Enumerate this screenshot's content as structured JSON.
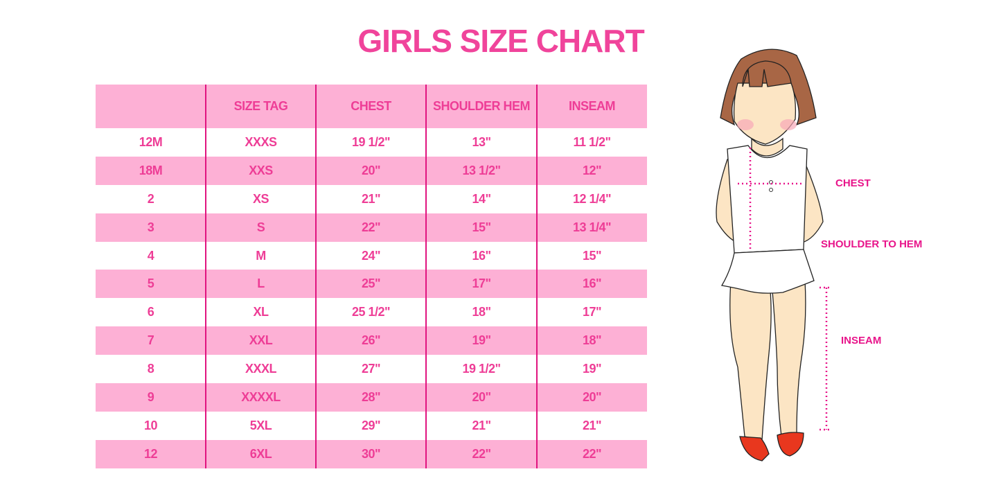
{
  "title": "GIRLS SIZE CHART",
  "table": {
    "headers": [
      "",
      "SIZE TAG",
      "CHEST",
      "SHOULDER HEM",
      "INSEAM"
    ],
    "rows": [
      [
        "12M",
        "XXXS",
        "19 1/2\"",
        "13\"",
        "11 1/2\""
      ],
      [
        "18M",
        "XXS",
        "20\"",
        "13 1/2\"",
        "12\""
      ],
      [
        "2",
        "XS",
        "21\"",
        "14\"",
        "12 1/4\""
      ],
      [
        "3",
        "S",
        "22\"",
        "15\"",
        "13 1/4\""
      ],
      [
        "4",
        "M",
        "24\"",
        "16\"",
        "15\""
      ],
      [
        "5",
        "L",
        "25\"",
        "17\"",
        "16\""
      ],
      [
        "6",
        "XL",
        "25 1/2\"",
        "18\"",
        "17\""
      ],
      [
        "7",
        "XXL",
        "26\"",
        "19\"",
        "18\""
      ],
      [
        "8",
        "XXXL",
        "27\"",
        "19 1/2\"",
        "19\""
      ],
      [
        "9",
        "XXXXL",
        "28\"",
        "20\"",
        "20\""
      ],
      [
        "10",
        "5XL",
        "29\"",
        "21\"",
        "21\""
      ],
      [
        "12",
        "6XL",
        "30\"",
        "22\"",
        "22\""
      ]
    ]
  },
  "illustration": {
    "labels": {
      "chest": "CHEST",
      "shoulder_to_hem": "SHOULDER TO HEM",
      "inseam": "INSEAM"
    }
  },
  "colors": {
    "title": "#f0449b",
    "stripe": "#fdb0d5",
    "text": "#ee3d96",
    "divider": "#e0137f",
    "measure": "#e8148a"
  }
}
